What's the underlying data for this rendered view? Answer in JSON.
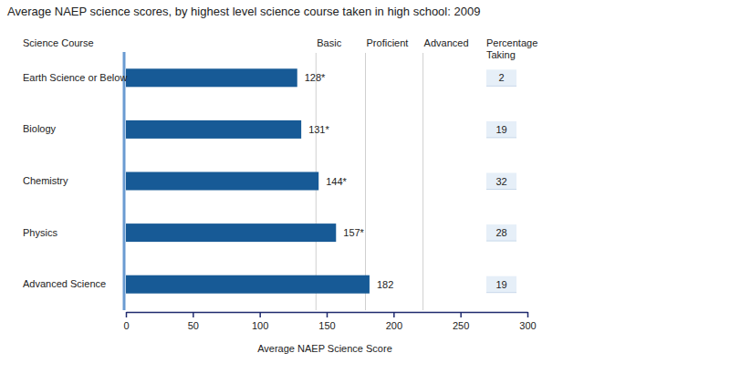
{
  "chart_data": {
    "type": "bar",
    "orientation": "horizontal",
    "title": "Average NAEP science scores, by highest level science course taken in high school: 2009",
    "y_label": "Science Course",
    "x_label": "Average NAEP Science Score",
    "categories": [
      "Earth Science or Below",
      "Biology",
      "Chemistry",
      "Physics",
      "Advanced Science"
    ],
    "values": [
      128,
      131,
      144,
      157,
      182
    ],
    "value_labels": [
      "128*",
      "131*",
      "144*",
      "157*",
      "182"
    ],
    "data_labels": true,
    "color": "#175a96",
    "xlim": [
      0,
      300
    ],
    "xticks": [
      0,
      50,
      100,
      150,
      200,
      250,
      300
    ],
    "reference_lines": [
      {
        "value": 142,
        "label": "Basic"
      },
      {
        "value": 179,
        "label": "Proficient"
      },
      {
        "value": 222,
        "label": "Advanced"
      }
    ],
    "percentage_taking": {
      "label": "Percentage Taking",
      "values": [
        2,
        19,
        32,
        28,
        19
      ]
    }
  }
}
